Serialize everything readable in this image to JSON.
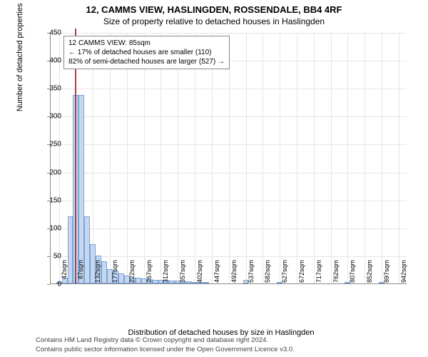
{
  "title": "12, CAMMS VIEW, HASLINGDEN, ROSSENDALE, BB4 4RF",
  "subtitle": "Size of property relative to detached houses in Haslingden",
  "chart": {
    "type": "bar",
    "ylabel": "Number of detached properties",
    "xlabel": "Distribution of detached houses by size in Haslingden",
    "ylim": [
      0,
      450
    ],
    "ytick_step": 50,
    "yticks": [
      0,
      50,
      100,
      150,
      200,
      250,
      300,
      350,
      400,
      450
    ],
    "xtick_positions": [
      42,
      87,
      132,
      177,
      222,
      267,
      312,
      357,
      402,
      447,
      492,
      537,
      582,
      627,
      672,
      717,
      762,
      807,
      852,
      897,
      942
    ],
    "xtick_labels": [
      "42sqm",
      "87sqm",
      "132sqm",
      "177sqm",
      "222sqm",
      "267sqm",
      "312sqm",
      "357sqm",
      "402sqm",
      "447sqm",
      "492sqm",
      "537sqm",
      "582sqm",
      "627sqm",
      "672sqm",
      "717sqm",
      "762sqm",
      "807sqm",
      "852sqm",
      "897sqm",
      "942sqm"
    ],
    "x_range": [
      20,
      965
    ],
    "bar_width_sqm": 15,
    "bars": [
      {
        "x": 42,
        "y": 2
      },
      {
        "x": 57,
        "y": 10
      },
      {
        "x": 72,
        "y": 120
      },
      {
        "x": 87,
        "y": 338
      },
      {
        "x": 102,
        "y": 338
      },
      {
        "x": 117,
        "y": 120
      },
      {
        "x": 132,
        "y": 70
      },
      {
        "x": 147,
        "y": 50
      },
      {
        "x": 162,
        "y": 40
      },
      {
        "x": 177,
        "y": 25
      },
      {
        "x": 192,
        "y": 23
      },
      {
        "x": 207,
        "y": 18
      },
      {
        "x": 222,
        "y": 14
      },
      {
        "x": 237,
        "y": 10
      },
      {
        "x": 252,
        "y": 10
      },
      {
        "x": 267,
        "y": 9
      },
      {
        "x": 282,
        "y": 8
      },
      {
        "x": 297,
        "y": 7
      },
      {
        "x": 312,
        "y": 7
      },
      {
        "x": 327,
        "y": 6
      },
      {
        "x": 342,
        "y": 5
      },
      {
        "x": 357,
        "y": 5
      },
      {
        "x": 372,
        "y": 4
      },
      {
        "x": 387,
        "y": 4
      },
      {
        "x": 402,
        "y": 3
      },
      {
        "x": 417,
        "y": 3
      },
      {
        "x": 432,
        "y": 2
      },
      {
        "x": 537,
        "y": 6
      },
      {
        "x": 627,
        "y": 2
      },
      {
        "x": 807,
        "y": 2
      },
      {
        "x": 897,
        "y": 3
      }
    ],
    "bar_color": "#c6d8f0",
    "bar_border": "#7ba3d4",
    "background_color": "#ffffff",
    "grid_color": "#e6e6e6",
    "marker_x": 85,
    "marker_color": "#cc3333"
  },
  "annotation": {
    "line1": "12 CAMMS VIEW: 85sqm",
    "line2": "← 17% of detached houses are smaller (110)",
    "line3": "82% of semi-detached houses are larger (527) →"
  },
  "footer": {
    "line1": "Contains HM Land Registry data © Crown copyright and database right 2024.",
    "line2": "Contains public sector information licensed under the Open Government Licence v3.0."
  }
}
